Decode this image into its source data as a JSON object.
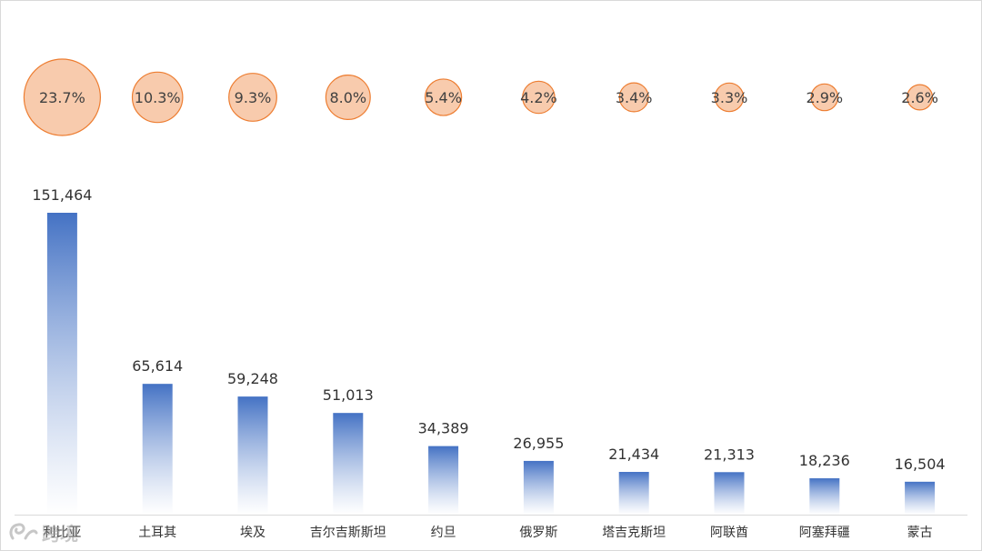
{
  "chart_data": {
    "type": "bar",
    "categories": [
      "利比亚",
      "土耳其",
      "埃及",
      "吉尔吉斯斯坦",
      "约旦",
      "俄罗斯",
      "塔吉克斯坦",
      "阿联酋",
      "阿塞拜疆",
      "蒙古"
    ],
    "values": [
      151464,
      65614,
      59248,
      51013,
      34389,
      26955,
      21434,
      21313,
      18236,
      16504
    ],
    "value_labels": [
      "151,464",
      "65,614",
      "59,248",
      "51,013",
      "34,389",
      "26,955",
      "21,434",
      "21,313",
      "18,236",
      "16,504"
    ],
    "shares": [
      23.7,
      10.3,
      9.3,
      8.0,
      5.4,
      4.2,
      3.4,
      3.3,
      2.9,
      2.6
    ],
    "share_labels": [
      "23.7%",
      "10.3%",
      "9.3%",
      "8.0%",
      "5.4%",
      "4.2%",
      "3.4%",
      "3.3%",
      "2.9%",
      "2.6%"
    ],
    "title": "",
    "xlabel": "",
    "ylabel": "",
    "grid": false,
    "legend": "none",
    "colors": {
      "bar_top": "#4472c4",
      "bar_bottom": "#ffffff",
      "bubble_fill": "#f8cbad",
      "bubble_stroke": "#ed7d31",
      "axis": "#d9d9d9"
    }
  },
  "watermark": {
    "text": "跨境",
    "icon": "logo-icon"
  }
}
